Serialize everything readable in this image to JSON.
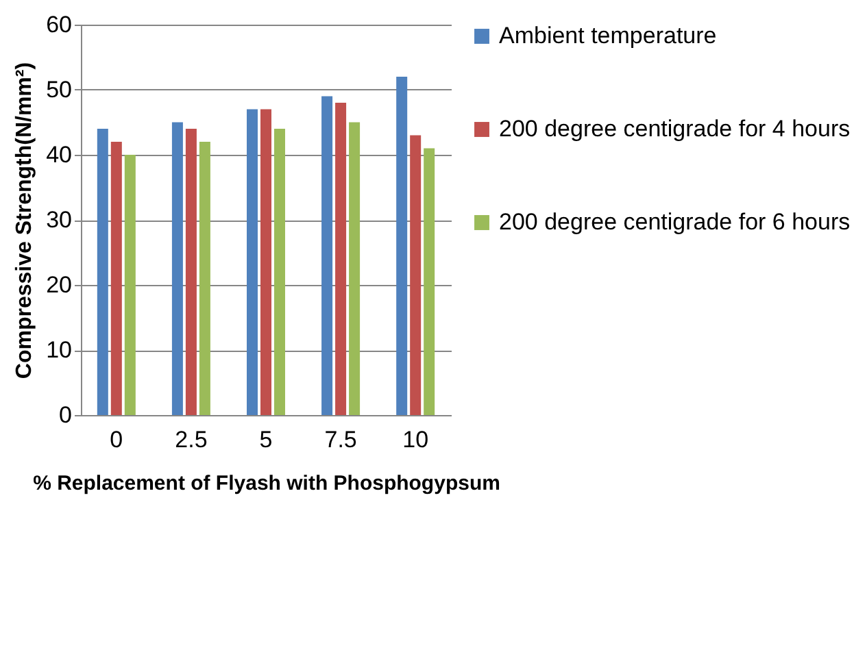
{
  "chart_data": {
    "type": "bar",
    "xlabel": "% Replacement of Flyash with Phosphogypsum",
    "ylabel": "Compressive Strength(N/mm²)",
    "categories": [
      "0",
      "2.5",
      "5",
      "7.5",
      "10"
    ],
    "series": [
      {
        "name": "Ambient temperature",
        "color": "#4f81bd",
        "values": [
          44,
          45,
          47,
          49,
          52
        ]
      },
      {
        "name": "200 degree centigrade  for 4 hours",
        "color": "#c0504d",
        "values": [
          42,
          44,
          47,
          48,
          43
        ]
      },
      {
        "name": "200 degree centigrade  for 6 hours",
        "color": "#9bbb59",
        "values": [
          40,
          42,
          44,
          45,
          41
        ]
      }
    ],
    "ylim": [
      0,
      60
    ],
    "yticks": [
      0,
      10,
      20,
      30,
      40,
      50,
      60
    ],
    "grid": "y",
    "legend": "right"
  }
}
